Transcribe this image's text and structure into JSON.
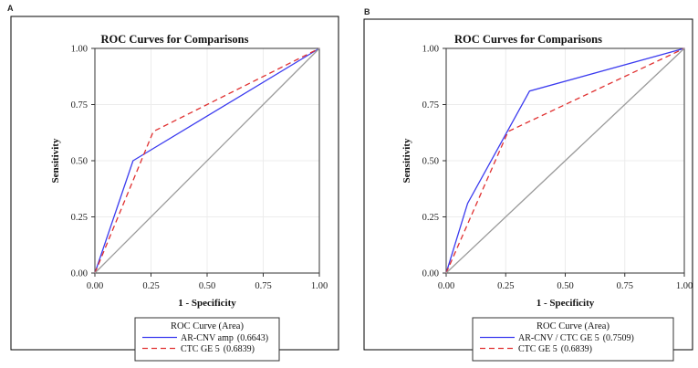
{
  "panel_a_label": "A",
  "panel_b_label": "B",
  "chart_data": [
    {
      "type": "line",
      "panel": "A",
      "title": "ROC Curves for Comparisons",
      "xlabel": "1 - Specificity",
      "ylabel": "Sensitivity",
      "xlim": [
        0,
        1
      ],
      "ylim": [
        0,
        1
      ],
      "xticks": [
        "0.00",
        "0.25",
        "0.50",
        "0.75",
        "1.00"
      ],
      "yticks": [
        "0.00",
        "0.25",
        "0.50",
        "0.75",
        "1.00"
      ],
      "grid": true,
      "legend_title": "ROC Curve (Area)",
      "legend_position": "bottom",
      "series": [
        {
          "name": "AR-CNV amp",
          "area_label": "(0.6643)",
          "color": "#3b3bef",
          "dash": "solid",
          "points": [
            [
              0,
              0
            ],
            [
              0.17,
              0.5
            ],
            [
              1,
              1
            ]
          ]
        },
        {
          "name": "CTC GE 5",
          "area_label": "(0.6839)",
          "color": "#e03030",
          "dash": "dashed",
          "points": [
            [
              0,
              0
            ],
            [
              0.26,
              0.63
            ],
            [
              1,
              1
            ]
          ]
        },
        {
          "name": "",
          "color": "#9a9a9a",
          "dash": "solid",
          "reference": true,
          "points": [
            [
              0,
              0
            ],
            [
              1,
              1
            ]
          ]
        }
      ]
    },
    {
      "type": "line",
      "panel": "B",
      "title": "ROC Curves for Comparisons",
      "xlabel": "1 - Specificity",
      "ylabel": "Sensitivity",
      "xlim": [
        0,
        1
      ],
      "ylim": [
        0,
        1
      ],
      "xticks": [
        "0.00",
        "0.25",
        "0.50",
        "0.75",
        "1.00"
      ],
      "yticks": [
        "0.00",
        "0.25",
        "0.50",
        "0.75",
        "1.00"
      ],
      "grid": true,
      "legend_title": "ROC Curve (Area)",
      "legend_position": "bottom",
      "series": [
        {
          "name": "AR-CNV / CTC GE 5",
          "area_label": "(0.7509)",
          "color": "#3b3bef",
          "dash": "solid",
          "points": [
            [
              0,
              0
            ],
            [
              0.09,
              0.31
            ],
            [
              0.35,
              0.81
            ],
            [
              1,
              1
            ]
          ]
        },
        {
          "name": "CTC GE 5",
          "area_label": "(0.6839)",
          "color": "#e03030",
          "dash": "dashed",
          "points": [
            [
              0,
              0
            ],
            [
              0.26,
              0.63
            ],
            [
              1,
              1
            ]
          ]
        },
        {
          "name": "",
          "color": "#9a9a9a",
          "dash": "solid",
          "reference": true,
          "points": [
            [
              0,
              0
            ],
            [
              1,
              1
            ]
          ]
        }
      ]
    }
  ]
}
